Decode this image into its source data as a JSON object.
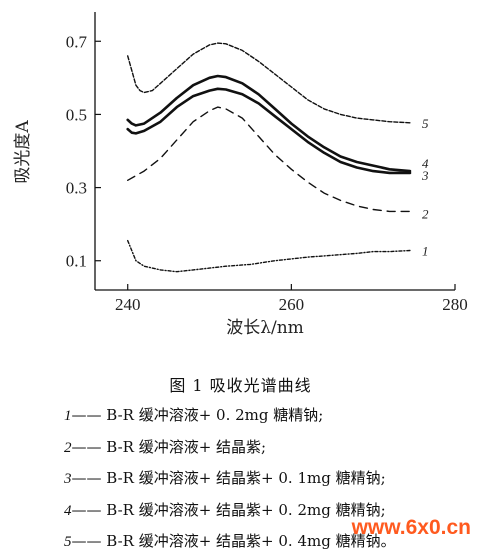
{
  "chart_data": {
    "type": "line",
    "xlabel": "波长λ/nm",
    "ylabel": "吸光度A",
    "xlim": [
      236,
      280
    ],
    "ylim": [
      0.02,
      0.78
    ],
    "x_ticks": [
      240,
      260,
      280
    ],
    "y_ticks": [
      0.1,
      0.3,
      0.5,
      0.7
    ],
    "grid": false,
    "series": [
      {
        "name": "1",
        "dash": "3 2 1 2",
        "x": [
          240,
          241,
          242,
          244,
          246,
          248,
          250,
          252,
          255,
          258,
          260,
          262,
          265,
          268,
          270,
          272,
          274.5
        ],
        "y": [
          0.155,
          0.1,
          0.085,
          0.075,
          0.07,
          0.075,
          0.08,
          0.085,
          0.09,
          0.1,
          0.105,
          0.11,
          0.115,
          0.12,
          0.125,
          0.125,
          0.128
        ]
      },
      {
        "name": "2",
        "dash": "8 6",
        "x": [
          240,
          242,
          244,
          246,
          248,
          250,
          251,
          252,
          254,
          256,
          258,
          260,
          262,
          264,
          266,
          268,
          270,
          272,
          274.5
        ],
        "y": [
          0.32,
          0.345,
          0.38,
          0.43,
          0.48,
          0.51,
          0.52,
          0.515,
          0.49,
          0.44,
          0.39,
          0.35,
          0.315,
          0.285,
          0.265,
          0.25,
          0.24,
          0.235,
          0.235
        ]
      },
      {
        "name": "3",
        "dash": "",
        "x": [
          240,
          240.5,
          241,
          242,
          244,
          246,
          248,
          250,
          251,
          252,
          254,
          256,
          258,
          260,
          262,
          264,
          266,
          268,
          270,
          272,
          274.5
        ],
        "y": [
          0.46,
          0.45,
          0.448,
          0.455,
          0.48,
          0.52,
          0.55,
          0.565,
          0.57,
          0.568,
          0.555,
          0.53,
          0.495,
          0.46,
          0.425,
          0.395,
          0.37,
          0.355,
          0.345,
          0.34,
          0.34
        ]
      },
      {
        "name": "4",
        "dash": "",
        "x": [
          240,
          240.5,
          241,
          242,
          244,
          246,
          248,
          250,
          251,
          252,
          254,
          256,
          258,
          260,
          262,
          264,
          266,
          268,
          270,
          272,
          274.5
        ],
        "y": [
          0.485,
          0.475,
          0.47,
          0.475,
          0.505,
          0.545,
          0.58,
          0.6,
          0.605,
          0.602,
          0.585,
          0.555,
          0.515,
          0.475,
          0.44,
          0.41,
          0.385,
          0.37,
          0.36,
          0.35,
          0.345
        ]
      },
      {
        "name": "5",
        "dash": "4 2",
        "x": [
          240,
          240.5,
          241,
          241.5,
          242,
          243,
          244,
          246,
          248,
          250,
          251,
          252,
          254,
          256,
          258,
          260,
          262,
          264,
          266,
          268,
          270,
          272,
          274.5
        ],
        "y": [
          0.66,
          0.62,
          0.58,
          0.565,
          0.56,
          0.565,
          0.585,
          0.625,
          0.665,
          0.69,
          0.695,
          0.693,
          0.675,
          0.645,
          0.61,
          0.575,
          0.54,
          0.515,
          0.5,
          0.49,
          0.485,
          0.48,
          0.477
        ]
      }
    ]
  },
  "caption": "图 1   吸收光谱曲线",
  "legend": [
    {
      "num": "1",
      "text": "—— B-R 缓冲溶液+ 0. 2mg 糖精钠;"
    },
    {
      "num": "2",
      "text": "—— B-R 缓冲溶液+ 结晶紫;"
    },
    {
      "num": "3",
      "text": "—— B-R 缓冲溶液+ 结晶紫+ 0. 1mg 糖精钠;"
    },
    {
      "num": "4",
      "text": "—— B-R 缓冲溶液+ 结晶紫+ 0. 2mg 糖精钠;"
    },
    {
      "num": "5",
      "text": "—— B-R 缓冲溶液+ 结晶紫+ 0. 4mg 糖精钠。"
    }
  ],
  "watermark": "www.6x0.cn",
  "colors": {
    "ink": "#111111",
    "watermark": "#ff5a1f"
  }
}
